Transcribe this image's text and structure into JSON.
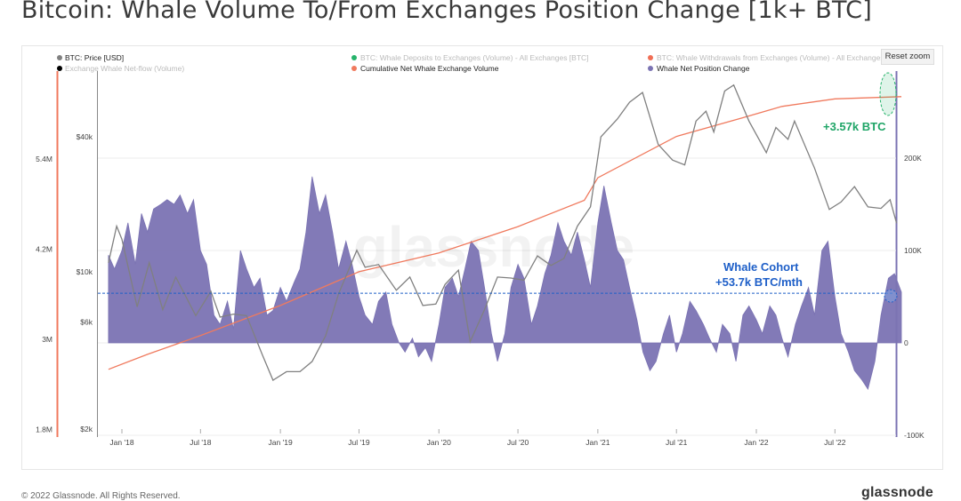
{
  "title": "Bitcoin: Whale Volume To/From Exchanges Position Change [1k+ BTC]",
  "reset_zoom": "Reset zoom",
  "footer": {
    "copyright": "© 2022 Glassnode. All Rights Reserved.",
    "brand": "glassnode"
  },
  "watermark": "glassnode",
  "colors": {
    "price": "#808080",
    "deposits": "#26b36b",
    "withdrawals": "#f06e55",
    "netflow": "#000000",
    "cumulative": "#f07a5e",
    "position": "#7b73b3",
    "annotation_green": "#1fa567",
    "annotation_blue": "#1e5fc8"
  },
  "legend": [
    {
      "label": "BTC: Price [USD]",
      "color": "#808080",
      "faded": false
    },
    {
      "label": "BTC: Whale Deposits to Exchanges (Volume) - All Exchanges [BTC]",
      "color": "#26b36b",
      "faded": true
    },
    {
      "label": "BTC: Whale Withdrawals from Exchanges (Volume) - All Exchanges [BTC]",
      "color": "#f06e55",
      "faded": true
    },
    {
      "label": "Exchange Whale Net-flow (Volume)",
      "color": "#000000",
      "faded": true
    },
    {
      "label": "Cumulative Net Whale Exchange Volume",
      "color": "#f07a5e",
      "faded": false
    },
    {
      "label": "Whale Net Position Change",
      "color": "#7b73b3",
      "faded": false
    }
  ],
  "annotations": {
    "green": "+3.57k BTC",
    "blue_line1": "Whale Cohort",
    "blue_line2": "+53.7k BTC/mth"
  },
  "chart_data": {
    "type": "area",
    "x_ticks": [
      "Jan '18",
      "Jul '18",
      "Jan '19",
      "Jul '19",
      "Jan '20",
      "Jul '20",
      "Jan '21",
      "Jul '21",
      "Jan '22",
      "Jul '22"
    ],
    "x_tick_dates": [
      "2018-01",
      "2018-07",
      "2019-01",
      "2019-07",
      "2020-01",
      "2020-07",
      "2021-01",
      "2021-07",
      "2022-01",
      "2022-07"
    ],
    "y_left_outer": {
      "ticks": [
        "1.8M",
        "3M",
        "4.2M",
        "5.4M"
      ],
      "values": [
        1800000,
        3000000,
        4200000,
        5400000
      ]
    },
    "y_left_inner": {
      "ticks": [
        "$2k",
        "$6k",
        "$10k",
        "$40k"
      ],
      "values": [
        2000,
        6000,
        10000,
        40000
      ],
      "scale": "log"
    },
    "y_right": {
      "ticks": [
        "-100K",
        "0",
        "100K",
        "200K"
      ],
      "values": [
        -100000,
        0,
        100000,
        200000
      ]
    },
    "series": [
      {
        "name": "Whale Net Position Change",
        "axis": "right",
        "points": [
          [
            "2017-12-01",
            95000
          ],
          [
            "2017-12-15",
            80000
          ],
          [
            "2018-01-01",
            100000
          ],
          [
            "2018-01-15",
            130000
          ],
          [
            "2018-02-01",
            85000
          ],
          [
            "2018-02-15",
            140000
          ],
          [
            "2018-03-01",
            120000
          ],
          [
            "2018-03-15",
            145000
          ],
          [
            "2018-04-01",
            150000
          ],
          [
            "2018-04-15",
            155000
          ],
          [
            "2018-05-01",
            150000
          ],
          [
            "2018-05-15",
            160000
          ],
          [
            "2018-06-01",
            140000
          ],
          [
            "2018-06-15",
            155000
          ],
          [
            "2018-07-01",
            100000
          ],
          [
            "2018-07-15",
            85000
          ],
          [
            "2018-08-01",
            30000
          ],
          [
            "2018-08-15",
            20000
          ],
          [
            "2018-09-01",
            45000
          ],
          [
            "2018-09-15",
            15000
          ],
          [
            "2018-10-01",
            100000
          ],
          [
            "2018-10-15",
            80000
          ],
          [
            "2018-11-01",
            60000
          ],
          [
            "2018-11-15",
            70000
          ],
          [
            "2018-12-01",
            30000
          ],
          [
            "2018-12-15",
            35000
          ],
          [
            "2019-01-01",
            60000
          ],
          [
            "2019-01-15",
            45000
          ],
          [
            "2019-02-01",
            65000
          ],
          [
            "2019-02-15",
            80000
          ],
          [
            "2019-03-01",
            120000
          ],
          [
            "2019-03-15",
            180000
          ],
          [
            "2019-04-01",
            140000
          ],
          [
            "2019-04-15",
            160000
          ],
          [
            "2019-05-01",
            120000
          ],
          [
            "2019-05-15",
            80000
          ],
          [
            "2019-06-01",
            110000
          ],
          [
            "2019-06-15",
            85000
          ],
          [
            "2019-07-01",
            50000
          ],
          [
            "2019-07-15",
            30000
          ],
          [
            "2019-08-01",
            20000
          ],
          [
            "2019-08-15",
            45000
          ],
          [
            "2019-09-01",
            55000
          ],
          [
            "2019-09-15",
            20000
          ],
          [
            "2019-10-01",
            0
          ],
          [
            "2019-10-15",
            -10000
          ],
          [
            "2019-11-01",
            5000
          ],
          [
            "2019-11-15",
            -15000
          ],
          [
            "2019-12-01",
            -5000
          ],
          [
            "2019-12-15",
            -20000
          ],
          [
            "2020-01-01",
            20000
          ],
          [
            "2020-01-15",
            60000
          ],
          [
            "2020-02-01",
            70000
          ],
          [
            "2020-02-15",
            50000
          ],
          [
            "2020-03-01",
            80000
          ],
          [
            "2020-03-15",
            110000
          ],
          [
            "2020-04-01",
            100000
          ],
          [
            "2020-04-15",
            60000
          ],
          [
            "2020-05-01",
            10000
          ],
          [
            "2020-05-15",
            -20000
          ],
          [
            "2020-06-01",
            10000
          ],
          [
            "2020-06-15",
            60000
          ],
          [
            "2020-07-01",
            85000
          ],
          [
            "2020-07-15",
            70000
          ],
          [
            "2020-08-01",
            20000
          ],
          [
            "2020-08-15",
            40000
          ],
          [
            "2020-09-01",
            75000
          ],
          [
            "2020-09-15",
            95000
          ],
          [
            "2020-10-01",
            130000
          ],
          [
            "2020-10-15",
            110000
          ],
          [
            "2020-11-01",
            95000
          ],
          [
            "2020-11-15",
            120000
          ],
          [
            "2020-12-01",
            90000
          ],
          [
            "2020-12-15",
            60000
          ],
          [
            "2021-01-01",
            130000
          ],
          [
            "2021-01-15",
            170000
          ],
          [
            "2021-02-01",
            130000
          ],
          [
            "2021-02-15",
            100000
          ],
          [
            "2021-03-01",
            90000
          ],
          [
            "2021-03-15",
            60000
          ],
          [
            "2021-04-01",
            25000
          ],
          [
            "2021-04-15",
            -10000
          ],
          [
            "2021-05-01",
            -30000
          ],
          [
            "2021-05-15",
            -20000
          ],
          [
            "2021-06-01",
            10000
          ],
          [
            "2021-06-15",
            30000
          ],
          [
            "2021-07-01",
            -10000
          ],
          [
            "2021-07-15",
            10000
          ],
          [
            "2021-08-01",
            45000
          ],
          [
            "2021-08-15",
            35000
          ],
          [
            "2021-09-01",
            20000
          ],
          [
            "2021-09-15",
            5000
          ],
          [
            "2021-10-01",
            -10000
          ],
          [
            "2021-10-15",
            20000
          ],
          [
            "2021-11-01",
            10000
          ],
          [
            "2021-11-15",
            -20000
          ],
          [
            "2021-12-01",
            30000
          ],
          [
            "2021-12-15",
            40000
          ],
          [
            "2022-01-01",
            25000
          ],
          [
            "2022-01-15",
            10000
          ],
          [
            "2022-02-01",
            40000
          ],
          [
            "2022-02-15",
            30000
          ],
          [
            "2022-03-01",
            5000
          ],
          [
            "2022-03-15",
            -15000
          ],
          [
            "2022-04-01",
            20000
          ],
          [
            "2022-04-15",
            40000
          ],
          [
            "2022-05-01",
            60000
          ],
          [
            "2022-05-15",
            30000
          ],
          [
            "2022-06-01",
            100000
          ],
          [
            "2022-06-15",
            110000
          ],
          [
            "2022-07-01",
            50000
          ],
          [
            "2022-07-15",
            10000
          ],
          [
            "2022-08-01",
            -10000
          ],
          [
            "2022-08-15",
            -30000
          ],
          [
            "2022-09-01",
            -40000
          ],
          [
            "2022-09-15",
            -50000
          ],
          [
            "2022-10-01",
            -20000
          ],
          [
            "2022-10-15",
            30000
          ],
          [
            "2022-11-01",
            70000
          ],
          [
            "2022-11-15",
            75000
          ],
          [
            "2022-12-01",
            55000
          ]
        ]
      },
      {
        "name": "BTC: Price [USD]",
        "axis": "left_inner",
        "points": [
          [
            "2017-12-01",
            11000
          ],
          [
            "2017-12-20",
            16000
          ],
          [
            "2018-01-01",
            14000
          ],
          [
            "2018-02-05",
            7000
          ],
          [
            "2018-03-05",
            11000
          ],
          [
            "2018-04-05",
            6800
          ],
          [
            "2018-05-05",
            9500
          ],
          [
            "2018-06-20",
            6400
          ],
          [
            "2018-07-25",
            8200
          ],
          [
            "2018-08-15",
            6300
          ],
          [
            "2018-09-15",
            6500
          ],
          [
            "2018-10-15",
            6400
          ],
          [
            "2018-11-20",
            4300
          ],
          [
            "2018-12-15",
            3300
          ],
          [
            "2019-01-15",
            3600
          ],
          [
            "2019-02-15",
            3600
          ],
          [
            "2019-03-15",
            4000
          ],
          [
            "2019-04-15",
            5200
          ],
          [
            "2019-05-15",
            8000
          ],
          [
            "2019-06-26",
            12500
          ],
          [
            "2019-07-15",
            10500
          ],
          [
            "2019-08-15",
            10800
          ],
          [
            "2019-09-25",
            8300
          ],
          [
            "2019-10-26",
            9500
          ],
          [
            "2019-11-25",
            7100
          ],
          [
            "2019-12-25",
            7200
          ],
          [
            "2020-01-15",
            8800
          ],
          [
            "2020-02-15",
            10200
          ],
          [
            "2020-03-13",
            4900
          ],
          [
            "2020-04-15",
            6800
          ],
          [
            "2020-05-15",
            9500
          ],
          [
            "2020-06-15",
            9400
          ],
          [
            "2020-07-15",
            9200
          ],
          [
            "2020-08-15",
            11800
          ],
          [
            "2020-09-15",
            10700
          ],
          [
            "2020-10-15",
            11500
          ],
          [
            "2020-11-15",
            16000
          ],
          [
            "2020-12-15",
            19500
          ],
          [
            "2021-01-08",
            40000
          ],
          [
            "2021-02-15",
            48000
          ],
          [
            "2021-03-15",
            57000
          ],
          [
            "2021-04-14",
            63000
          ],
          [
            "2021-05-20",
            37000
          ],
          [
            "2021-06-22",
            31500
          ],
          [
            "2021-07-20",
            30000
          ],
          [
            "2021-08-15",
            47000
          ],
          [
            "2021-09-07",
            52000
          ],
          [
            "2021-09-25",
            42000
          ],
          [
            "2021-10-20",
            64000
          ],
          [
            "2021-11-10",
            68000
          ],
          [
            "2021-12-15",
            47000
          ],
          [
            "2022-01-24",
            34000
          ],
          [
            "2022-02-15",
            44000
          ],
          [
            "2022-03-15",
            39000
          ],
          [
            "2022-03-30",
            47000
          ],
          [
            "2022-05-15",
            29000
          ],
          [
            "2022-06-18",
            19000
          ],
          [
            "2022-07-15",
            20500
          ],
          [
            "2022-08-15",
            24000
          ],
          [
            "2022-09-15",
            19500
          ],
          [
            "2022-10-15",
            19200
          ],
          [
            "2022-11-05",
            21000
          ],
          [
            "2022-11-20",
            16500
          ]
        ]
      },
      {
        "name": "Cumulative Net Whale Exchange Volume",
        "axis": "left_outer",
        "points": [
          [
            "2017-12-01",
            2600000
          ],
          [
            "2018-03-01",
            2800000
          ],
          [
            "2018-07-01",
            3050000
          ],
          [
            "2019-01-01",
            3450000
          ],
          [
            "2019-07-01",
            3900000
          ],
          [
            "2020-01-01",
            4150000
          ],
          [
            "2020-07-01",
            4500000
          ],
          [
            "2020-12-01",
            4850000
          ],
          [
            "2021-01-01",
            5150000
          ],
          [
            "2021-07-01",
            5700000
          ],
          [
            "2021-12-01",
            5950000
          ],
          [
            "2022-03-01",
            6100000
          ],
          [
            "2022-07-01",
            6200000
          ],
          [
            "2022-12-01",
            6230000
          ]
        ]
      }
    ],
    "reference_line": {
      "name": "Whale Cohort",
      "value": 53700,
      "axis": "right"
    }
  }
}
